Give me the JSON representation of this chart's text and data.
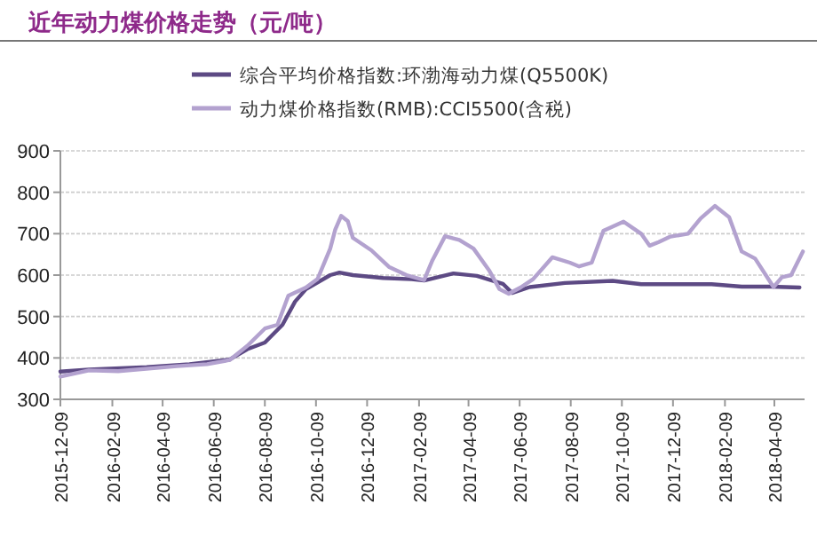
{
  "chart_data": {
    "type": "line",
    "title": "近年动力煤价格走势（元/吨）",
    "legend": "top",
    "grid": "y",
    "line_style": "solid",
    "marker": "none",
    "xlim": [
      "2015-12-09",
      "2018-05-15"
    ],
    "xticks": [
      "2015-12-09",
      "2016-02-09",
      "2016-04-09",
      "2016-06-09",
      "2016-08-09",
      "2016-10-09",
      "2016-12-09",
      "2017-02-09",
      "2017-04-09",
      "2017-06-09",
      "2017-08-09",
      "2017-10-09",
      "2017-12-09",
      "2018-02-09",
      "2018-04-09"
    ],
    "ylim": [
      300,
      900
    ],
    "yticks": [
      300,
      400,
      500,
      600,
      700,
      800,
      900
    ],
    "series": [
      {
        "name": "综合平均价格指数:环渤海动力煤(Q5500K)",
        "color": "#5d4a84",
        "x": [
          "2015-12-09",
          "2016-01-12",
          "2016-03-21",
          "2016-05-11",
          "2016-06-28",
          "2016-07-19",
          "2016-08-09",
          "2016-08-30",
          "2016-09-14",
          "2016-09-27",
          "2016-10-26",
          "2016-11-06",
          "2016-11-22",
          "2016-12-28",
          "2017-01-31",
          "2017-02-15",
          "2017-03-22",
          "2017-04-19",
          "2017-05-20",
          "2017-05-31",
          "2017-06-21",
          "2017-08-02",
          "2017-09-28",
          "2017-11-01",
          "2018-01-24",
          "2018-03-01",
          "2018-04-05",
          "2018-05-09"
        ],
        "values": [
          367,
          372,
          378,
          385,
          396,
          421,
          437,
          480,
          536,
          566,
          600,
          606,
          600,
          593,
          590,
          587,
          604,
          598,
          579,
          557,
          571,
          581,
          586,
          578,
          578,
          572,
          572,
          570
        ]
      },
      {
        "name": "动力煤价格指数(RMB):CCI5500(含税)",
        "color": "#b3a2cf",
        "x": [
          "2015-12-09",
          "2016-01-12",
          "2016-02-16",
          "2016-04-26",
          "2016-06-01",
          "2016-06-28",
          "2016-07-19",
          "2016-08-09",
          "2016-08-24",
          "2016-09-06",
          "2016-09-27",
          "2016-10-11",
          "2016-10-26",
          "2016-11-01",
          "2016-11-08",
          "2016-11-16",
          "2016-11-22",
          "2016-12-14",
          "2017-01-04",
          "2017-01-25",
          "2017-02-15",
          "2017-02-25",
          "2017-03-12",
          "2017-03-29",
          "2017-04-15",
          "2017-05-04",
          "2017-05-16",
          "2017-05-27",
          "2017-06-10",
          "2017-06-25",
          "2017-07-18",
          "2017-08-08",
          "2017-08-19",
          "2017-09-03",
          "2017-09-17",
          "2017-10-11",
          "2017-11-01",
          "2017-11-11",
          "2017-11-22",
          "2017-12-06",
          "2017-12-27",
          "2018-01-11",
          "2018-01-28",
          "2018-02-14",
          "2018-03-01",
          "2018-03-17",
          "2018-04-08",
          "2018-04-18",
          "2018-04-29",
          "2018-05-13"
        ],
        "values": [
          355,
          370,
          368,
          380,
          385,
          395,
          429,
          471,
          480,
          550,
          570,
          591,
          664,
          710,
          743,
          730,
          690,
          660,
          620,
          600,
          588,
          636,
          694,
          685,
          664,
          610,
          566,
          555,
          570,
          590,
          643,
          630,
          621,
          630,
          707,
          729,
          700,
          671,
          680,
          693,
          700,
          737,
          767,
          740,
          657,
          640,
          571,
          595,
          600,
          657
        ]
      }
    ]
  }
}
